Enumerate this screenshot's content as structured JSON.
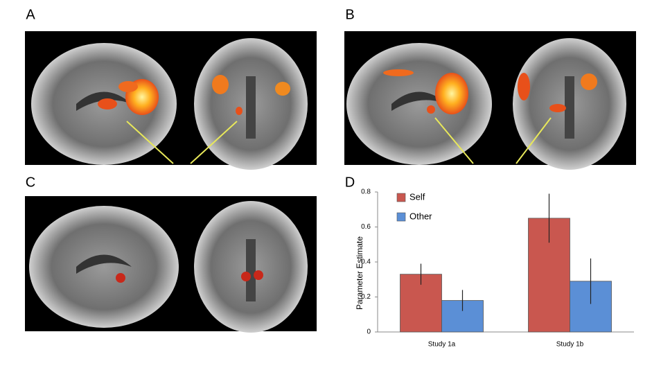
{
  "panel_labels": [
    "A",
    "B",
    "C",
    "D"
  ],
  "chart_data": {
    "type": "bar",
    "y_label": "Parameter Estimate",
    "categories": [
      "Study 1a",
      "Study 1b"
    ],
    "series": [
      {
        "name": "Self",
        "color": "#c9574f",
        "values": [
          0.33,
          0.65
        ],
        "errors": [
          0.06,
          0.14
        ]
      },
      {
        "name": "Other",
        "color": "#5b8fd6",
        "values": [
          0.18,
          0.29
        ],
        "errors": [
          0.06,
          0.13
        ]
      }
    ],
    "ylim": [
      0,
      0.8
    ],
    "yticks": [
      0,
      0.2,
      0.4,
      0.6,
      0.8
    ],
    "legend": "upper left"
  }
}
